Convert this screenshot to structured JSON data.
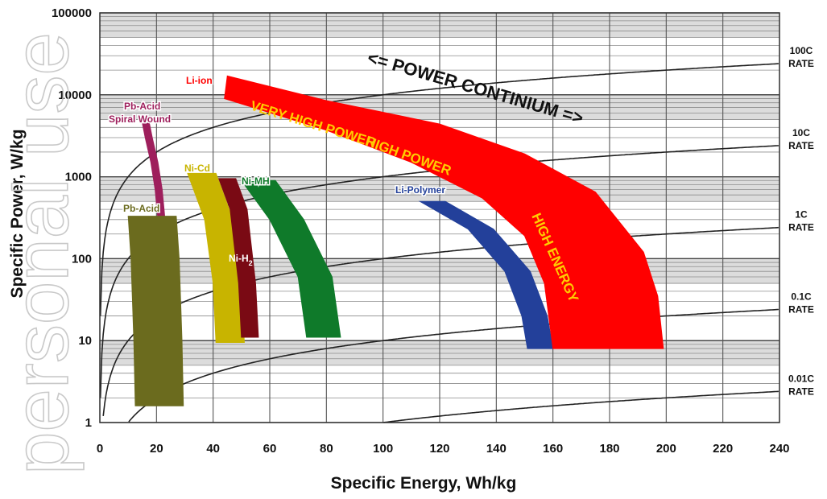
{
  "chart_data": {
    "type": "area",
    "xlabel": "Specific Energy, Wh/kg",
    "ylabel": "Specific Power, W/kg",
    "xlim": [
      0,
      240
    ],
    "ylim": [
      1,
      100000
    ],
    "y_scale": "log",
    "grid": true,
    "x_ticks": [
      "0",
      "20",
      "40",
      "60",
      "80",
      "100",
      "120",
      "140",
      "160",
      "180",
      "200",
      "220",
      "240"
    ],
    "y_ticks": [
      "1",
      "10",
      "100",
      "1000",
      "10000",
      "100000"
    ],
    "rate_lines": [
      {
        "label": [
          "100C",
          "RATE"
        ],
        "c_rate": 100
      },
      {
        "label": [
          "10C",
          "RATE"
        ],
        "c_rate": 10
      },
      {
        "label": [
          "1C",
          "RATE"
        ],
        "c_rate": 1
      },
      {
        "label": [
          "0.1C",
          "RATE"
        ],
        "c_rate": 0.1
      },
      {
        "label": [
          "0.01C",
          "RATE"
        ],
        "c_rate": 0.01
      }
    ],
    "regions": [
      {
        "name": "Pb-Acid Spiral Wound",
        "label": [
          "Pb-Acid",
          "Spiral Wound"
        ],
        "color": "#9e1f5c",
        "label_color": "#9e1f5c",
        "energy_at_power": [
          [
            15,
            4500
          ],
          [
            16,
            3000
          ],
          [
            18,
            1500
          ],
          [
            19.5,
            700
          ],
          [
            20.5,
            300
          ],
          [
            21,
            120
          ]
        ],
        "width_wh_kg": 2.5
      },
      {
        "name": "Pb-Acid",
        "label": [
          "Pb-Acid"
        ],
        "color": "#6b6b1e",
        "label_color": "#6b6b1e",
        "energy_at_power": [
          [
            10,
            330
          ],
          [
            11,
            100
          ],
          [
            12,
            10
          ],
          [
            12.5,
            1.6
          ]
        ],
        "width_wh_kg": 17
      },
      {
        "name": "Ni-Cd",
        "label": [
          "Ni-Cd"
        ],
        "color": "#c8b400",
        "label_color": "#c8b400",
        "energy_at_power": [
          [
            31,
            1100
          ],
          [
            37,
            300
          ],
          [
            40,
            50
          ],
          [
            41,
            9.5
          ]
        ],
        "width_wh_kg": 10
      },
      {
        "name": "Ni-H2",
        "label": [
          "Ni-H",
          "2"
        ],
        "color": "#7a0a14",
        "label_color": "#7a0a14",
        "energy_at_power": [
          [
            42,
            950
          ],
          [
            46,
            400
          ],
          [
            49,
            50
          ],
          [
            50,
            11
          ]
        ],
        "width_wh_kg": 6
      },
      {
        "name": "Ni-MH",
        "label": [
          "Ni-MH"
        ],
        "color": "#0f7a2a",
        "label_color": "#0f7a2a",
        "energy_at_power": [
          [
            50,
            900
          ],
          [
            60,
            300
          ],
          [
            70,
            60
          ],
          [
            73,
            11
          ]
        ],
        "width_wh_kg": 12
      },
      {
        "name": "Li-Polymer",
        "label": [
          "Li-Polymer"
        ],
        "color": "#23409a",
        "label_color": "#23409a",
        "energy_at_power": [
          [
            113,
            500
          ],
          [
            130,
            230
          ],
          [
            143,
            70
          ],
          [
            149,
            20
          ],
          [
            151,
            8
          ]
        ],
        "width_wh_kg": 9
      },
      {
        "name": "Li-ion",
        "label": [
          "Li-ion"
        ],
        "color": "#ff0000",
        "label_color": "#ff0000",
        "upper_edge": [
          [
            45,
            17000
          ],
          [
            80,
            8500
          ],
          [
            120,
            4400
          ],
          [
            150,
            1900
          ],
          [
            175,
            650
          ],
          [
            192,
            120
          ],
          [
            197,
            35
          ],
          [
            199,
            8
          ]
        ],
        "lower_edge": [
          [
            44,
            9000
          ],
          [
            80,
            3700
          ],
          [
            110,
            1500
          ],
          [
            135,
            550
          ],
          [
            150,
            190
          ],
          [
            157,
            50
          ],
          [
            160,
            8
          ]
        ],
        "annotations": [
          "VERY HIGH POWER",
          "HIGH   POWER",
          "HIGH   ENERGY"
        ]
      }
    ],
    "annotation": "<= POWER CONTINIUM =>"
  },
  "watermark": "personal use"
}
